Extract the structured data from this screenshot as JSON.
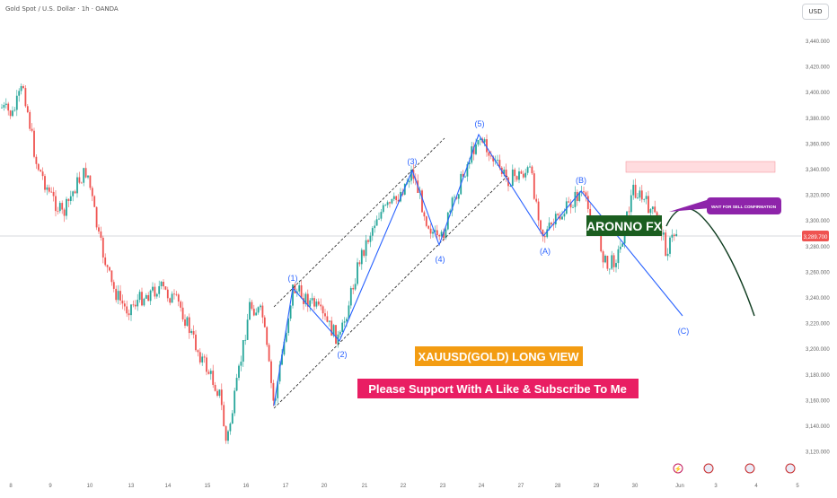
{
  "header": {
    "symbol_line": "Gold Spot / U.S. Dollar · 1h · OANDA"
  },
  "currency_button": "USD",
  "price_axis": {
    "ticks": [
      "3,440.000",
      "3,420.000",
      "3,400.000",
      "3,380.000",
      "3,360.000",
      "3,340.000",
      "3,320.000",
      "3,300.000",
      "3,280.000",
      "3,260.000",
      "3,240.000",
      "3,220.000",
      "3,200.000",
      "3,180.000",
      "3,160.000",
      "3,140.000",
      "3,120.000"
    ],
    "current_price_label": "3,289.700"
  },
  "time_axis": {
    "ticks": [
      "8",
      "9",
      "10",
      "13",
      "14",
      "15",
      "16",
      "17",
      "20",
      "21",
      "22",
      "23",
      "24",
      "27",
      "28",
      "29",
      "30",
      "Jun",
      "3",
      "4",
      "5"
    ]
  },
  "annotations": {
    "wave_labels": [
      "(1)",
      "(2)",
      "(3)",
      "(4)",
      "(5)",
      "(A)",
      "(B)",
      "(C)"
    ],
    "brand_label": "ARONNO FX",
    "callout": "WAIT FOR SELL CONFIRMATION",
    "title_banner": "XAUUSD(GOLD) LONG VIEW",
    "subtitle_banner": "Please Support With A Like & Subscribe To Me"
  },
  "colors": {
    "up": "#26a69a",
    "down": "#ef5350",
    "wave_line": "#2962ff",
    "brand_bg": "#1b5e20",
    "callout_bg": "#8e24aa",
    "title_bg": "#f39c12",
    "subtitle_bg": "#e91e63",
    "projection": "#0d3b1e",
    "zone": "#ffcdd2"
  },
  "chart_data": {
    "type": "candlestick",
    "price_range": [
      3110,
      3450
    ],
    "current_price": 3289.7,
    "waves": [
      {
        "label": "(1)",
        "price": 3248
      },
      {
        "label": "(2)",
        "price": 3208
      },
      {
        "label": "(3)",
        "price": 3340
      },
      {
        "label": "(4)",
        "price": 3283
      },
      {
        "label": "(5)",
        "price": 3370
      },
      {
        "label": "(A)",
        "price": 3290
      },
      {
        "label": "(B)",
        "price": 3325
      },
      {
        "label": "(C)",
        "price": 3226
      }
    ],
    "sell_zone": [
      3338,
      3347
    ]
  }
}
